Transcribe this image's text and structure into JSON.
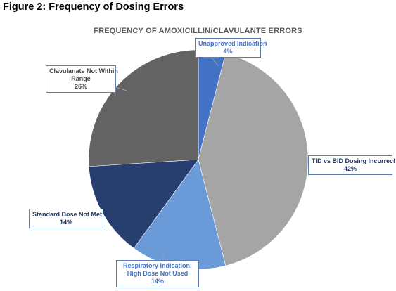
{
  "figure_caption": "Figure 2: Frequency of Dosing Errors",
  "chart_data": {
    "type": "pie",
    "title": "FREQUENCY OF AMOXICILLIN/CLAVULANTE ERRORS",
    "start_angle_deg": 0,
    "direction": "clockwise",
    "slices": [
      {
        "label": "Unapproved Indication",
        "label_lines": [
          "Unapproved Indication"
        ],
        "value": 4,
        "pct_label": "4%",
        "color": "#4472C4",
        "label_color": "#4472C4"
      },
      {
        "label": "TID vs BID Dosing Incorrect",
        "label_lines": [
          "TID vs BID Dosing Incorrect"
        ],
        "value": 42,
        "pct_label": "42%",
        "color": "#A5A5A5",
        "label_color": "#1f3864"
      },
      {
        "label": "Respiratory Indication: High Dose Not Used",
        "label_lines": [
          "Respiratory Indication:",
          "High Dose Not Used"
        ],
        "value": 14,
        "pct_label": "14%",
        "color": "#6A9BD8",
        "label_color": "#4472C4"
      },
      {
        "label": "Standard Dose Not Met",
        "label_lines": [
          "Standard Dose Not Met"
        ],
        "value": 14,
        "pct_label": "14%",
        "color": "#263F6E",
        "label_color": "#1f3864"
      },
      {
        "label": "Clavulanate Not Within Range",
        "label_lines": [
          "Clavulanate Not Within",
          "Range"
        ],
        "value": 26,
        "pct_label": "26%",
        "color": "#636363",
        "label_color": "#404040"
      }
    ]
  }
}
